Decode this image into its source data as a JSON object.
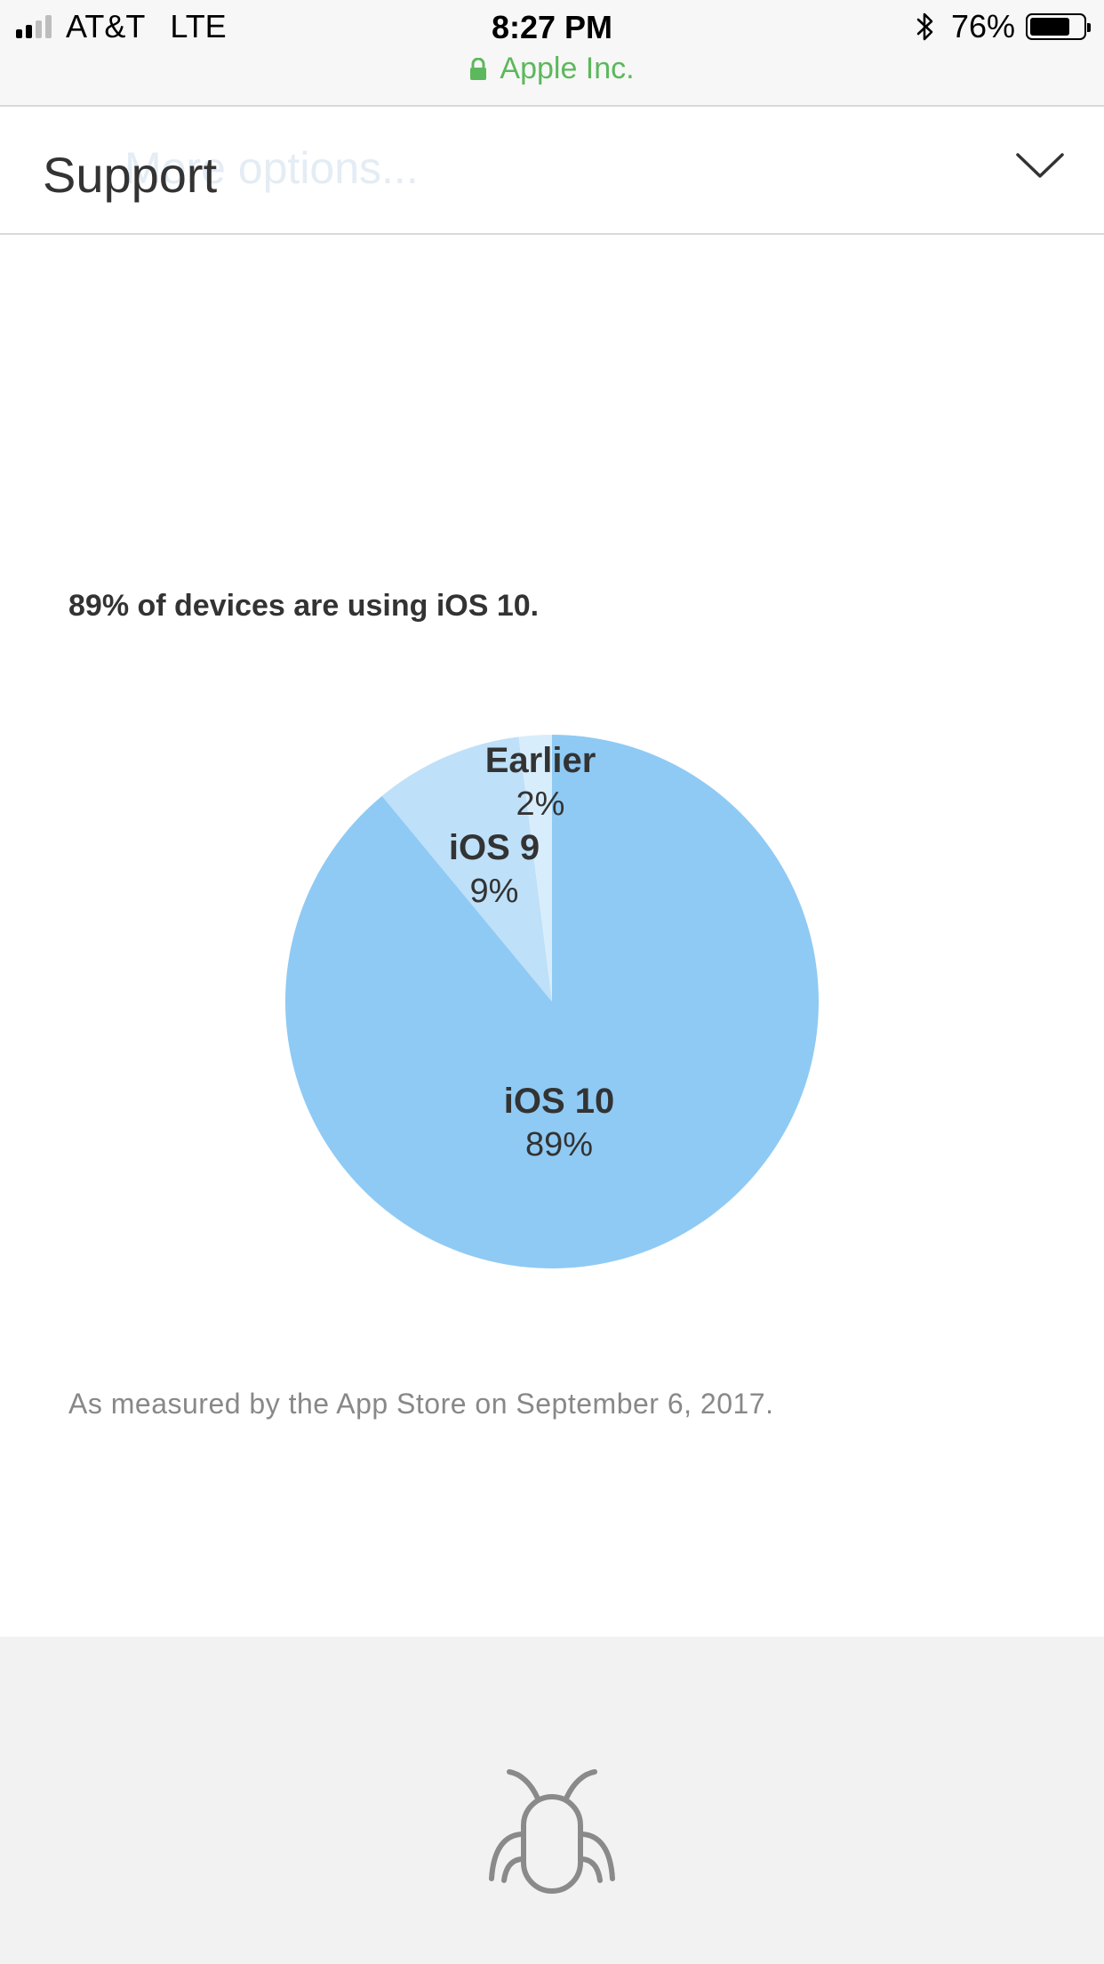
{
  "status_bar": {
    "carrier": "AT&T",
    "network": "LTE",
    "time": "8:27 PM",
    "battery_percent": "76%",
    "battery_level": 0.76,
    "site_name": "Apple Inc."
  },
  "header": {
    "title": "Support",
    "ghost_text": "More options..."
  },
  "main": {
    "headline": "89% of devices are using iOS 10.",
    "caption": "As measured by the App Store on September 6, 2017."
  },
  "chart_data": {
    "type": "pie",
    "slices": [
      {
        "label": "iOS 10",
        "value": 89,
        "value_label": "89%",
        "color": "#8fcaf4"
      },
      {
        "label": "iOS 9",
        "value": 9,
        "value_label": "9%",
        "color": "#bee0f8"
      },
      {
        "label": "Earlier",
        "value": 2,
        "value_label": "2%",
        "color": "#d8edfb"
      }
    ],
    "start": "top",
    "direction": "clockwise"
  },
  "colors": {
    "secure_green": "#5cb85c",
    "text": "#333333",
    "caption": "#888888",
    "footer_bg": "#f2f2f2"
  },
  "icons": {
    "footer": "bug-icon",
    "header": "chevron-down-icon",
    "status": "lock-icon"
  }
}
